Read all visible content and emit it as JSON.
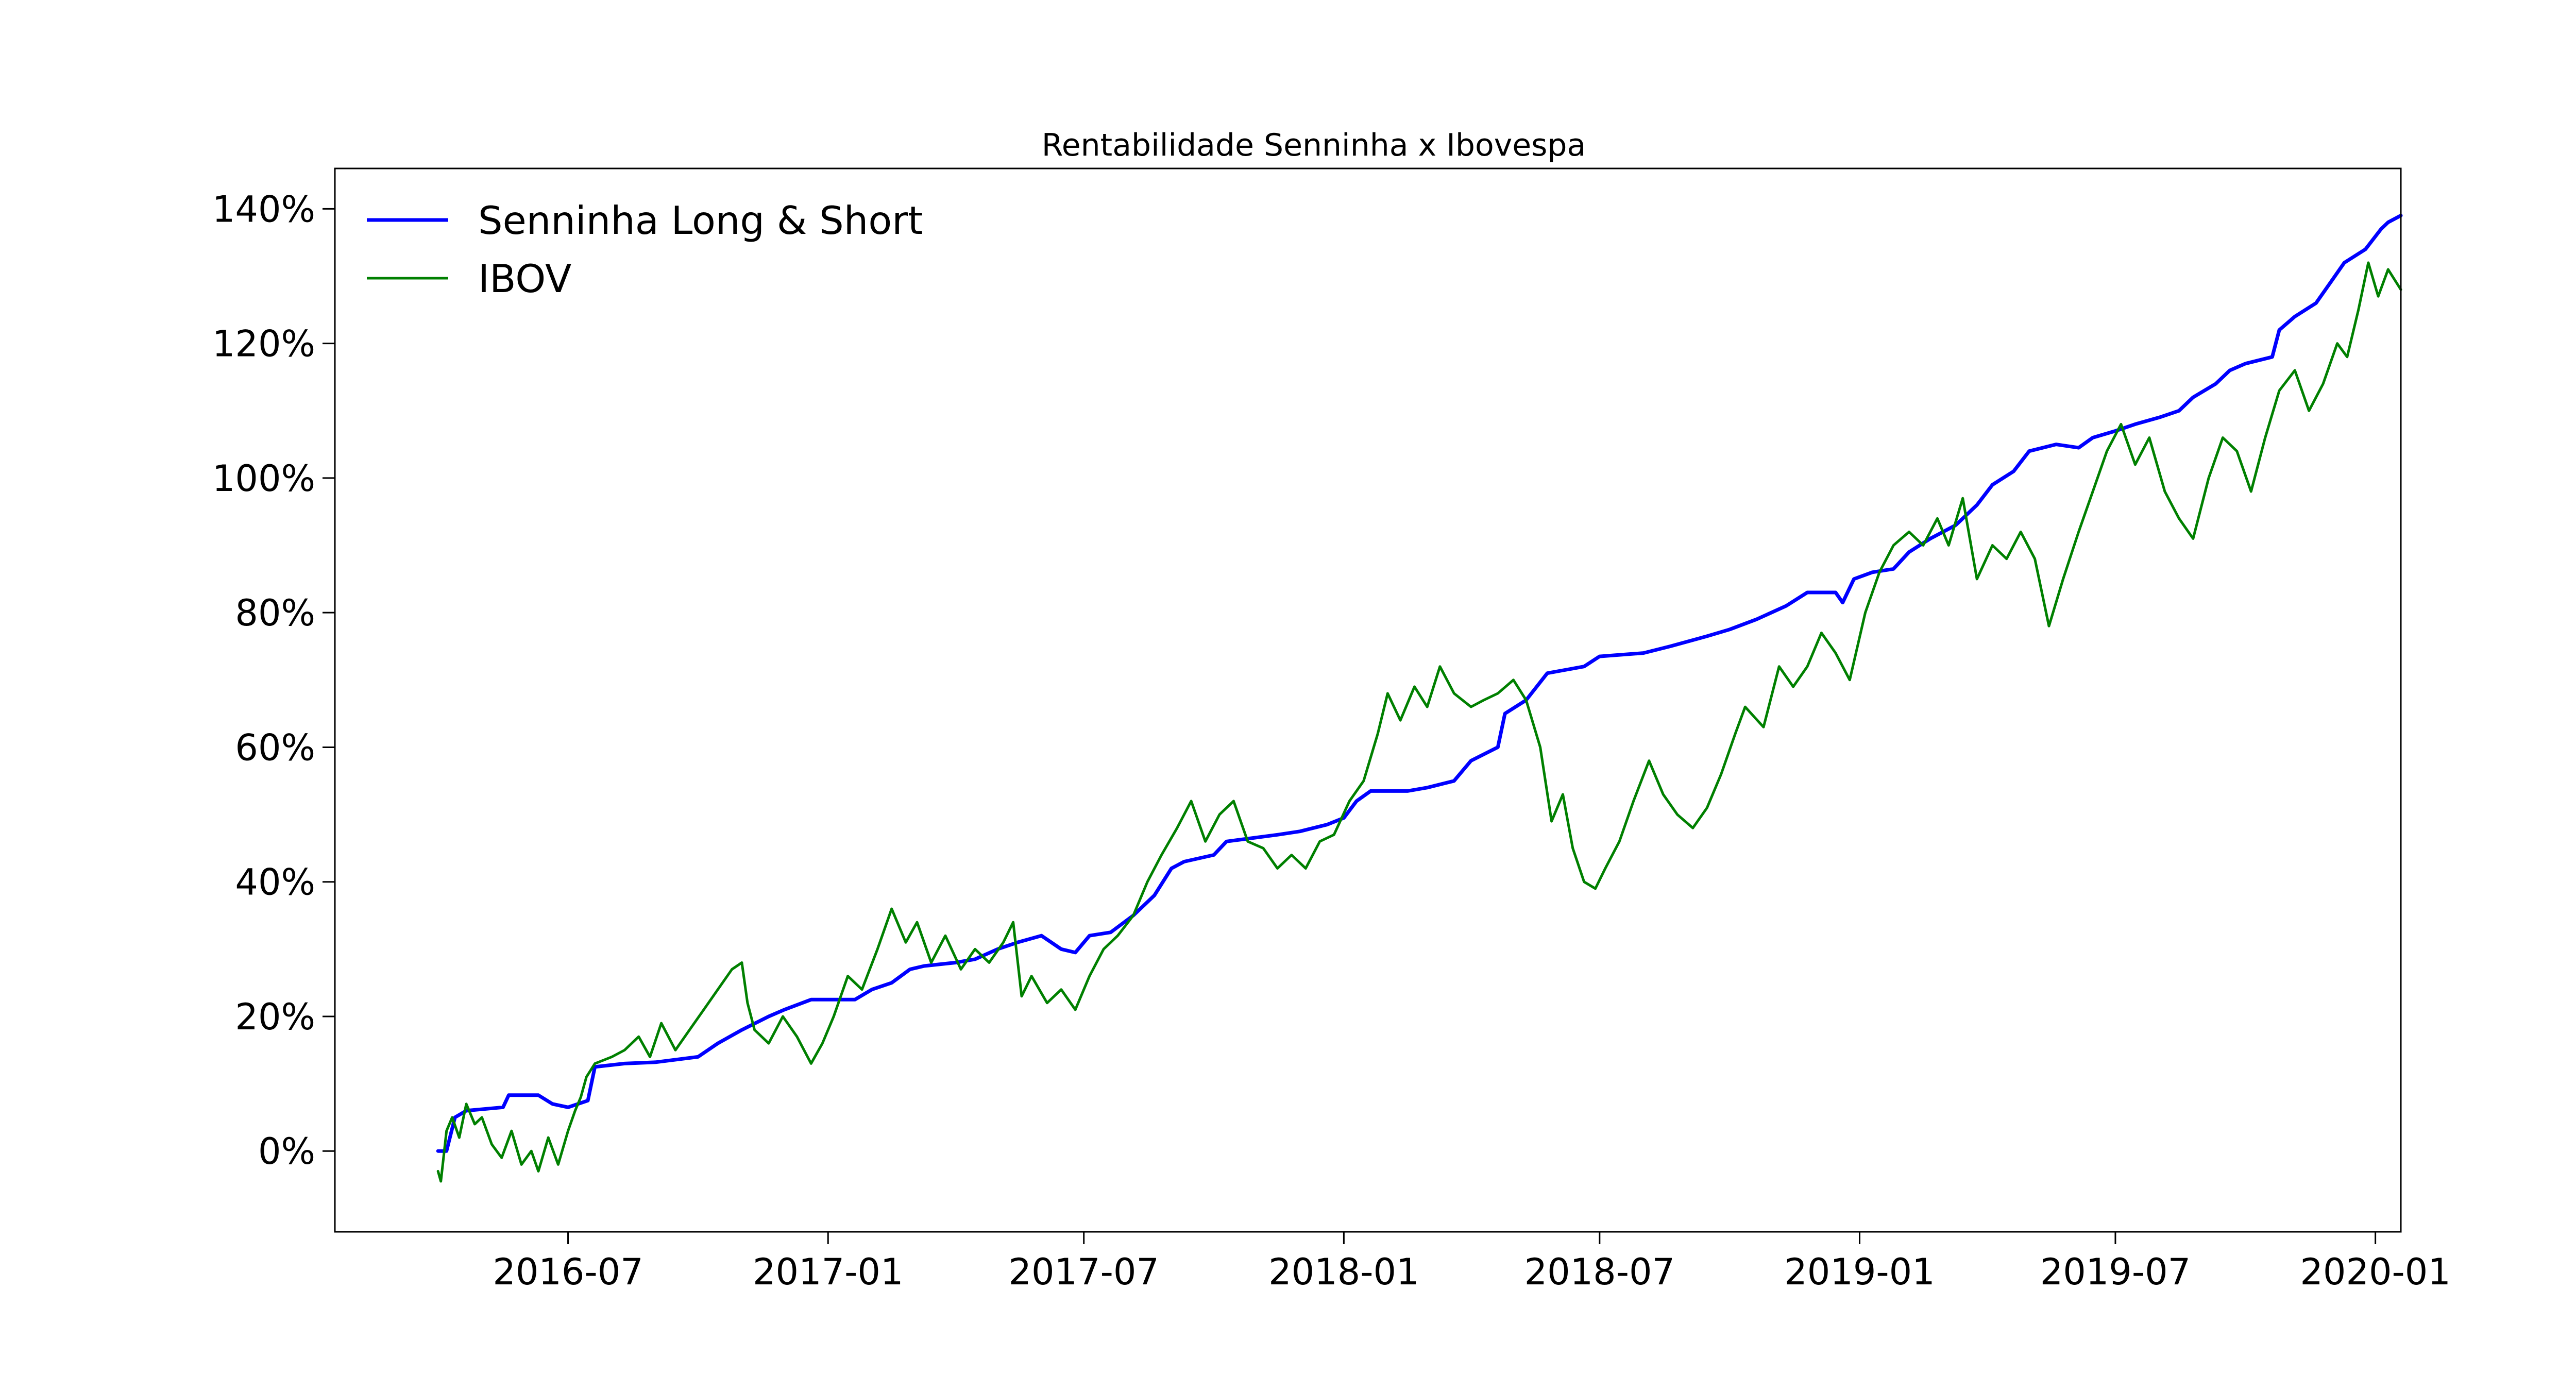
{
  "chart_data": {
    "type": "line",
    "title": "Rentabilidade Senninha x Ibovespa",
    "xlabel": "",
    "ylabel": "",
    "x_ticks": [
      "2016-07",
      "2017-01",
      "2017-07",
      "2018-01",
      "2018-07",
      "2019-01",
      "2019-07",
      "2020-01"
    ],
    "y_ticks": [
      "0%",
      "20%",
      "40%",
      "60%",
      "80%",
      "100%",
      "120%",
      "140%"
    ],
    "ylim": [
      -12,
      146
    ],
    "xlim": [
      "2016-01-18",
      "2020-01-19"
    ],
    "grid": false,
    "legend_position": "top-left",
    "series": [
      {
        "name": "Senninha Long & Short",
        "color": "#0000ff",
        "points": [
          [
            "2016-03-31",
            0
          ],
          [
            "2016-04-06",
            0
          ],
          [
            "2016-04-12",
            5
          ],
          [
            "2016-04-20",
            6
          ],
          [
            "2016-05-16",
            6.5
          ],
          [
            "2016-05-20",
            8.3
          ],
          [
            "2016-06-10",
            8.3
          ],
          [
            "2016-06-20",
            7
          ],
          [
            "2016-07-01",
            6.5
          ],
          [
            "2016-07-15",
            7.5
          ],
          [
            "2016-07-20",
            12.5
          ],
          [
            "2016-08-10",
            13
          ],
          [
            "2016-09-01",
            13.2
          ],
          [
            "2016-10-01",
            14
          ],
          [
            "2016-10-15",
            16
          ],
          [
            "2016-11-01",
            18
          ],
          [
            "2016-11-20",
            20
          ],
          [
            "2016-12-01",
            21
          ],
          [
            "2016-12-20",
            22.5
          ],
          [
            "2017-01-20",
            22.5
          ],
          [
            "2017-02-01",
            24
          ],
          [
            "2017-02-15",
            25
          ],
          [
            "2017-02-28",
            27
          ],
          [
            "2017-03-10",
            27.5
          ],
          [
            "2017-04-01",
            28
          ],
          [
            "2017-04-15",
            28.5
          ],
          [
            "2017-05-01",
            30
          ],
          [
            "2017-05-15",
            31
          ],
          [
            "2017-06-01",
            32
          ],
          [
            "2017-06-15",
            30
          ],
          [
            "2017-06-25",
            29.5
          ],
          [
            "2017-07-05",
            32
          ],
          [
            "2017-07-20",
            32.5
          ],
          [
            "2017-08-05",
            35
          ],
          [
            "2017-08-20",
            38
          ],
          [
            "2017-09-01",
            42
          ],
          [
            "2017-09-10",
            43
          ],
          [
            "2017-10-01",
            44
          ],
          [
            "2017-10-10",
            46
          ],
          [
            "2017-11-15",
            47
          ],
          [
            "2017-12-01",
            47.5
          ],
          [
            "2017-12-20",
            48.5
          ],
          [
            "2018-01-01",
            49.5
          ],
          [
            "2018-01-10",
            52
          ],
          [
            "2018-01-20",
            53.5
          ],
          [
            "2018-02-15",
            53.5
          ],
          [
            "2018-03-01",
            54
          ],
          [
            "2018-03-20",
            55
          ],
          [
            "2018-04-01",
            58
          ],
          [
            "2018-04-20",
            60
          ],
          [
            "2018-04-25",
            65
          ],
          [
            "2018-05-10",
            67
          ],
          [
            "2018-05-25",
            71
          ],
          [
            "2018-06-20",
            72
          ],
          [
            "2018-07-01",
            73.5
          ],
          [
            "2018-08-01",
            74
          ],
          [
            "2018-08-20",
            75
          ],
          [
            "2018-09-15",
            76.5
          ],
          [
            "2018-10-01",
            77.5
          ],
          [
            "2018-10-20",
            79
          ],
          [
            "2018-11-10",
            81
          ],
          [
            "2018-11-25",
            83
          ],
          [
            "2018-12-15",
            83
          ],
          [
            "2018-12-20",
            81.5
          ],
          [
            "2018-12-28",
            85
          ],
          [
            "2019-01-10",
            86
          ],
          [
            "2019-01-25",
            86.5
          ],
          [
            "2019-02-05",
            89
          ],
          [
            "2019-02-20",
            91
          ],
          [
            "2019-03-10",
            93
          ],
          [
            "2019-03-25",
            96
          ],
          [
            "2019-04-05",
            99
          ],
          [
            "2019-04-20",
            101
          ],
          [
            "2019-05-01",
            104
          ],
          [
            "2019-05-20",
            105
          ],
          [
            "2019-06-05",
            104.5
          ],
          [
            "2019-06-15",
            106
          ],
          [
            "2019-07-01",
            107
          ],
          [
            "2019-07-15",
            108
          ],
          [
            "2019-08-01",
            109
          ],
          [
            "2019-08-15",
            110
          ],
          [
            "2019-08-25",
            112
          ],
          [
            "2019-09-10",
            114
          ],
          [
            "2019-09-20",
            116
          ],
          [
            "2019-10-01",
            117
          ],
          [
            "2019-10-20",
            118
          ],
          [
            "2019-10-25",
            122
          ],
          [
            "2019-11-05",
            124
          ],
          [
            "2019-11-20",
            126
          ],
          [
            "2019-11-30",
            129
          ],
          [
            "2019-12-10",
            132
          ],
          [
            "2019-12-25",
            134
          ],
          [
            "2020-01-05",
            137
          ],
          [
            "2020-01-10",
            138
          ],
          [
            "2020-01-19",
            139
          ]
        ]
      },
      {
        "name": "IBOV",
        "color": "#008000",
        "points": [
          [
            "2016-03-31",
            -3
          ],
          [
            "2016-04-02",
            -4.5
          ],
          [
            "2016-04-06",
            3
          ],
          [
            "2016-04-10",
            5
          ],
          [
            "2016-04-15",
            2
          ],
          [
            "2016-04-20",
            7
          ],
          [
            "2016-04-26",
            4
          ],
          [
            "2016-05-01",
            5
          ],
          [
            "2016-05-08",
            1
          ],
          [
            "2016-05-15",
            -1
          ],
          [
            "2016-05-22",
            3
          ],
          [
            "2016-05-29",
            -2
          ],
          [
            "2016-06-05",
            0
          ],
          [
            "2016-06-10",
            -3
          ],
          [
            "2016-06-17",
            2
          ],
          [
            "2016-06-24",
            -2
          ],
          [
            "2016-07-01",
            3
          ],
          [
            "2016-07-06",
            6
          ],
          [
            "2016-07-10",
            8
          ],
          [
            "2016-07-14",
            11
          ],
          [
            "2016-07-20",
            13
          ],
          [
            "2016-08-01",
            14
          ],
          [
            "2016-08-10",
            15
          ],
          [
            "2016-08-20",
            17
          ],
          [
            "2016-08-28",
            14
          ],
          [
            "2016-09-05",
            19
          ],
          [
            "2016-09-15",
            15
          ],
          [
            "2016-09-25",
            18
          ],
          [
            "2016-10-05",
            21
          ],
          [
            "2016-10-15",
            24
          ],
          [
            "2016-10-25",
            27
          ],
          [
            "2016-11-01",
            28
          ],
          [
            "2016-11-05",
            22
          ],
          [
            "2016-11-10",
            18
          ],
          [
            "2016-11-20",
            16
          ],
          [
            "2016-11-30",
            20
          ],
          [
            "2016-12-10",
            17
          ],
          [
            "2016-12-20",
            13
          ],
          [
            "2016-12-28",
            16
          ],
          [
            "2017-01-05",
            20
          ],
          [
            "2017-01-15",
            26
          ],
          [
            "2017-01-25",
            24
          ],
          [
            "2017-02-05",
            30
          ],
          [
            "2017-02-15",
            36
          ],
          [
            "2017-02-25",
            31
          ],
          [
            "2017-03-05",
            34
          ],
          [
            "2017-03-15",
            28
          ],
          [
            "2017-03-25",
            32
          ],
          [
            "2017-04-05",
            27
          ],
          [
            "2017-04-15",
            30
          ],
          [
            "2017-04-25",
            28
          ],
          [
            "2017-05-05",
            31
          ],
          [
            "2017-05-12",
            34
          ],
          [
            "2017-05-18",
            23
          ],
          [
            "2017-05-25",
            26
          ],
          [
            "2017-06-05",
            22
          ],
          [
            "2017-06-15",
            24
          ],
          [
            "2017-06-25",
            21
          ],
          [
            "2017-07-05",
            26
          ],
          [
            "2017-07-15",
            30
          ],
          [
            "2017-07-25",
            32
          ],
          [
            "2017-08-05",
            35
          ],
          [
            "2017-08-15",
            40
          ],
          [
            "2017-08-25",
            44
          ],
          [
            "2017-09-05",
            48
          ],
          [
            "2017-09-15",
            52
          ],
          [
            "2017-09-25",
            46
          ],
          [
            "2017-10-05",
            50
          ],
          [
            "2017-10-15",
            52
          ],
          [
            "2017-10-25",
            46
          ],
          [
            "2017-11-05",
            45
          ],
          [
            "2017-11-15",
            42
          ],
          [
            "2017-11-25",
            44
          ],
          [
            "2017-12-05",
            42
          ],
          [
            "2017-12-15",
            46
          ],
          [
            "2017-12-25",
            47
          ],
          [
            "2018-01-05",
            52
          ],
          [
            "2018-01-15",
            55
          ],
          [
            "2018-01-25",
            62
          ],
          [
            "2018-02-01",
            68
          ],
          [
            "2018-02-10",
            64
          ],
          [
            "2018-02-20",
            69
          ],
          [
            "2018-03-01",
            66
          ],
          [
            "2018-03-10",
            72
          ],
          [
            "2018-03-20",
            68
          ],
          [
            "2018-04-01",
            66
          ],
          [
            "2018-04-10",
            67
          ],
          [
            "2018-04-20",
            68
          ],
          [
            "2018-05-01",
            70
          ],
          [
            "2018-05-10",
            67
          ],
          [
            "2018-05-20",
            60
          ],
          [
            "2018-05-28",
            49
          ],
          [
            "2018-06-05",
            53
          ],
          [
            "2018-06-12",
            45
          ],
          [
            "2018-06-20",
            40
          ],
          [
            "2018-06-28",
            39
          ],
          [
            "2018-07-05",
            42
          ],
          [
            "2018-07-15",
            46
          ],
          [
            "2018-07-25",
            52
          ],
          [
            "2018-08-05",
            58
          ],
          [
            "2018-08-15",
            53
          ],
          [
            "2018-08-25",
            50
          ],
          [
            "2018-09-05",
            48
          ],
          [
            "2018-09-15",
            51
          ],
          [
            "2018-09-25",
            56
          ],
          [
            "2018-10-05",
            62
          ],
          [
            "2018-10-12",
            66
          ],
          [
            "2018-10-25",
            63
          ],
          [
            "2018-11-05",
            72
          ],
          [
            "2018-11-15",
            69
          ],
          [
            "2018-11-25",
            72
          ],
          [
            "2018-12-05",
            77
          ],
          [
            "2018-12-15",
            74
          ],
          [
            "2018-12-25",
            70
          ],
          [
            "2019-01-05",
            80
          ],
          [
            "2019-01-15",
            86
          ],
          [
            "2019-01-25",
            90
          ],
          [
            "2019-02-05",
            92
          ],
          [
            "2019-02-15",
            90
          ],
          [
            "2019-02-25",
            94
          ],
          [
            "2019-03-05",
            90
          ],
          [
            "2019-03-15",
            97
          ],
          [
            "2019-03-25",
            85
          ],
          [
            "2019-04-05",
            90
          ],
          [
            "2019-04-15",
            88
          ],
          [
            "2019-04-25",
            92
          ],
          [
            "2019-05-05",
            88
          ],
          [
            "2019-05-15",
            78
          ],
          [
            "2019-05-25",
            85
          ],
          [
            "2019-06-05",
            92
          ],
          [
            "2019-06-15",
            98
          ],
          [
            "2019-06-25",
            104
          ],
          [
            "2019-07-05",
            108
          ],
          [
            "2019-07-15",
            102
          ],
          [
            "2019-07-25",
            106
          ],
          [
            "2019-08-05",
            98
          ],
          [
            "2019-08-15",
            94
          ],
          [
            "2019-08-25",
            91
          ],
          [
            "2019-09-05",
            100
          ],
          [
            "2019-09-15",
            106
          ],
          [
            "2019-09-25",
            104
          ],
          [
            "2019-10-05",
            98
          ],
          [
            "2019-10-15",
            106
          ],
          [
            "2019-10-25",
            113
          ],
          [
            "2019-11-05",
            116
          ],
          [
            "2019-11-15",
            110
          ],
          [
            "2019-11-25",
            114
          ],
          [
            "2019-12-05",
            120
          ],
          [
            "2019-12-12",
            118
          ],
          [
            "2019-12-20",
            125
          ],
          [
            "2019-12-27",
            132
          ],
          [
            "2020-01-03",
            127
          ],
          [
            "2020-01-10",
            131
          ],
          [
            "2020-01-19",
            128
          ]
        ]
      }
    ]
  }
}
